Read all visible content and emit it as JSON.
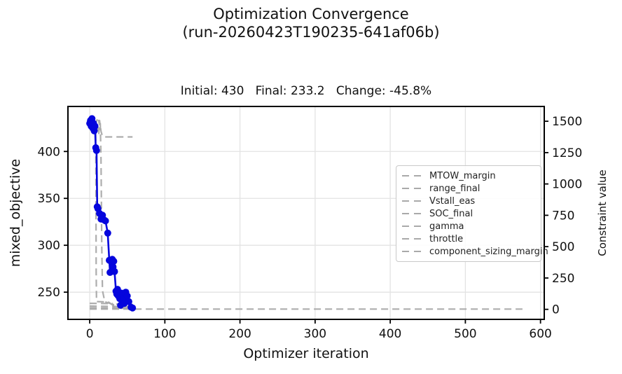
{
  "title": {
    "line1": "Optimization Convergence",
    "line2": "(run-20260423T190235-641af06b)"
  },
  "stats": {
    "text": "Initial: 430   Final: 233.2   Change: -45.8%",
    "initial": "430",
    "final": "233.2",
    "change": "-45.8%"
  },
  "chart_data": {
    "type": "line",
    "title": "Optimization Convergence (run-20260423T190235-641af06b)",
    "axes_title": "Initial: 430   Final: 233.2   Change: -45.8%",
    "xlabel": "Optimizer iteration",
    "ylabel_left": "mixed_objective",
    "ylabel_right": "Constraint value",
    "xlim": [
      -29,
      605
    ],
    "ylim_left": [
      221,
      448
    ],
    "ylim_right": [
      -80,
      1618
    ],
    "xticks": [
      0,
      100,
      200,
      300,
      400,
      500,
      600
    ],
    "yticks_left": [
      250,
      300,
      350,
      400
    ],
    "yticks_right": [
      0,
      250,
      500,
      750,
      1000,
      1250,
      1500
    ],
    "grid": true,
    "legend_position": "center right",
    "colors": {
      "objective": "#0505dd",
      "constraint": "#a9a9a9",
      "grid": "#e3e3e3",
      "spine": "#000000"
    },
    "objective": {
      "name": "mixed_objective",
      "x": [
        0,
        1,
        2,
        3,
        4,
        5,
        6,
        7,
        8,
        9,
        10,
        11,
        13,
        15,
        17,
        19,
        21,
        24,
        26,
        27,
        28,
        30,
        31,
        32,
        33,
        35,
        36,
        37,
        38,
        40,
        41,
        42,
        44,
        45,
        46,
        48,
        50,
        52,
        55,
        57
      ],
      "y": [
        430,
        433,
        427,
        435,
        425,
        430,
        422,
        427,
        404,
        401,
        341,
        339,
        334,
        328,
        332,
        327,
        326,
        313,
        284,
        271,
        283,
        285,
        277,
        283,
        272,
        251,
        248,
        253,
        246,
        243,
        236,
        249,
        247,
        243,
        238,
        250,
        246,
        240,
        234,
        233.2
      ]
    },
    "constraints": [
      {
        "name": "MTOW_margin",
        "x": [
          0,
          3,
          6,
          9,
          11,
          13,
          14,
          15,
          15.5,
          16,
          17,
          20,
          30,
          57
        ],
        "y": [
          1450,
          1520,
          1440,
          1500,
          1530,
          1470,
          1500,
          1200,
          900,
          500,
          150,
          60,
          42,
          40
        ]
      },
      {
        "name": "range_final",
        "x": [
          8,
          10,
          12,
          13,
          15,
          17,
          20,
          57
        ],
        "y": [
          1400,
          1480,
          1390,
          1510,
          1420,
          1380,
          1375,
          1375
        ]
      },
      {
        "name": "Vstall_eas",
        "x": [
          2,
          5,
          8,
          8.3,
          8.6,
          9,
          25,
          30,
          57
        ],
        "y": [
          1470,
          1430,
          1480,
          900,
          300,
          62,
          58,
          36,
          35
        ]
      },
      {
        "name": "SOC_final",
        "x": [
          0,
          10,
          30,
          57
        ],
        "y": [
          26,
          25,
          23,
          22
        ]
      },
      {
        "name": "gamma",
        "x": [
          0,
          30,
          57
        ],
        "y": [
          12,
          10,
          9
        ]
      },
      {
        "name": "throttle",
        "x": [
          0,
          15,
          30,
          33,
          57
        ],
        "y": [
          48,
          47,
          46,
          9,
          7
        ]
      },
      {
        "name": "component_sizing_margin",
        "x": [
          0,
          100,
          200,
          300,
          400,
          500,
          576
        ],
        "y": [
          2,
          2,
          2,
          2,
          2,
          2,
          2
        ]
      }
    ],
    "legend_entries": [
      "MTOW_margin",
      "range_final",
      "Vstall_eas",
      "SOC_final",
      "gamma",
      "throttle",
      "component_sizing_margin"
    ]
  }
}
